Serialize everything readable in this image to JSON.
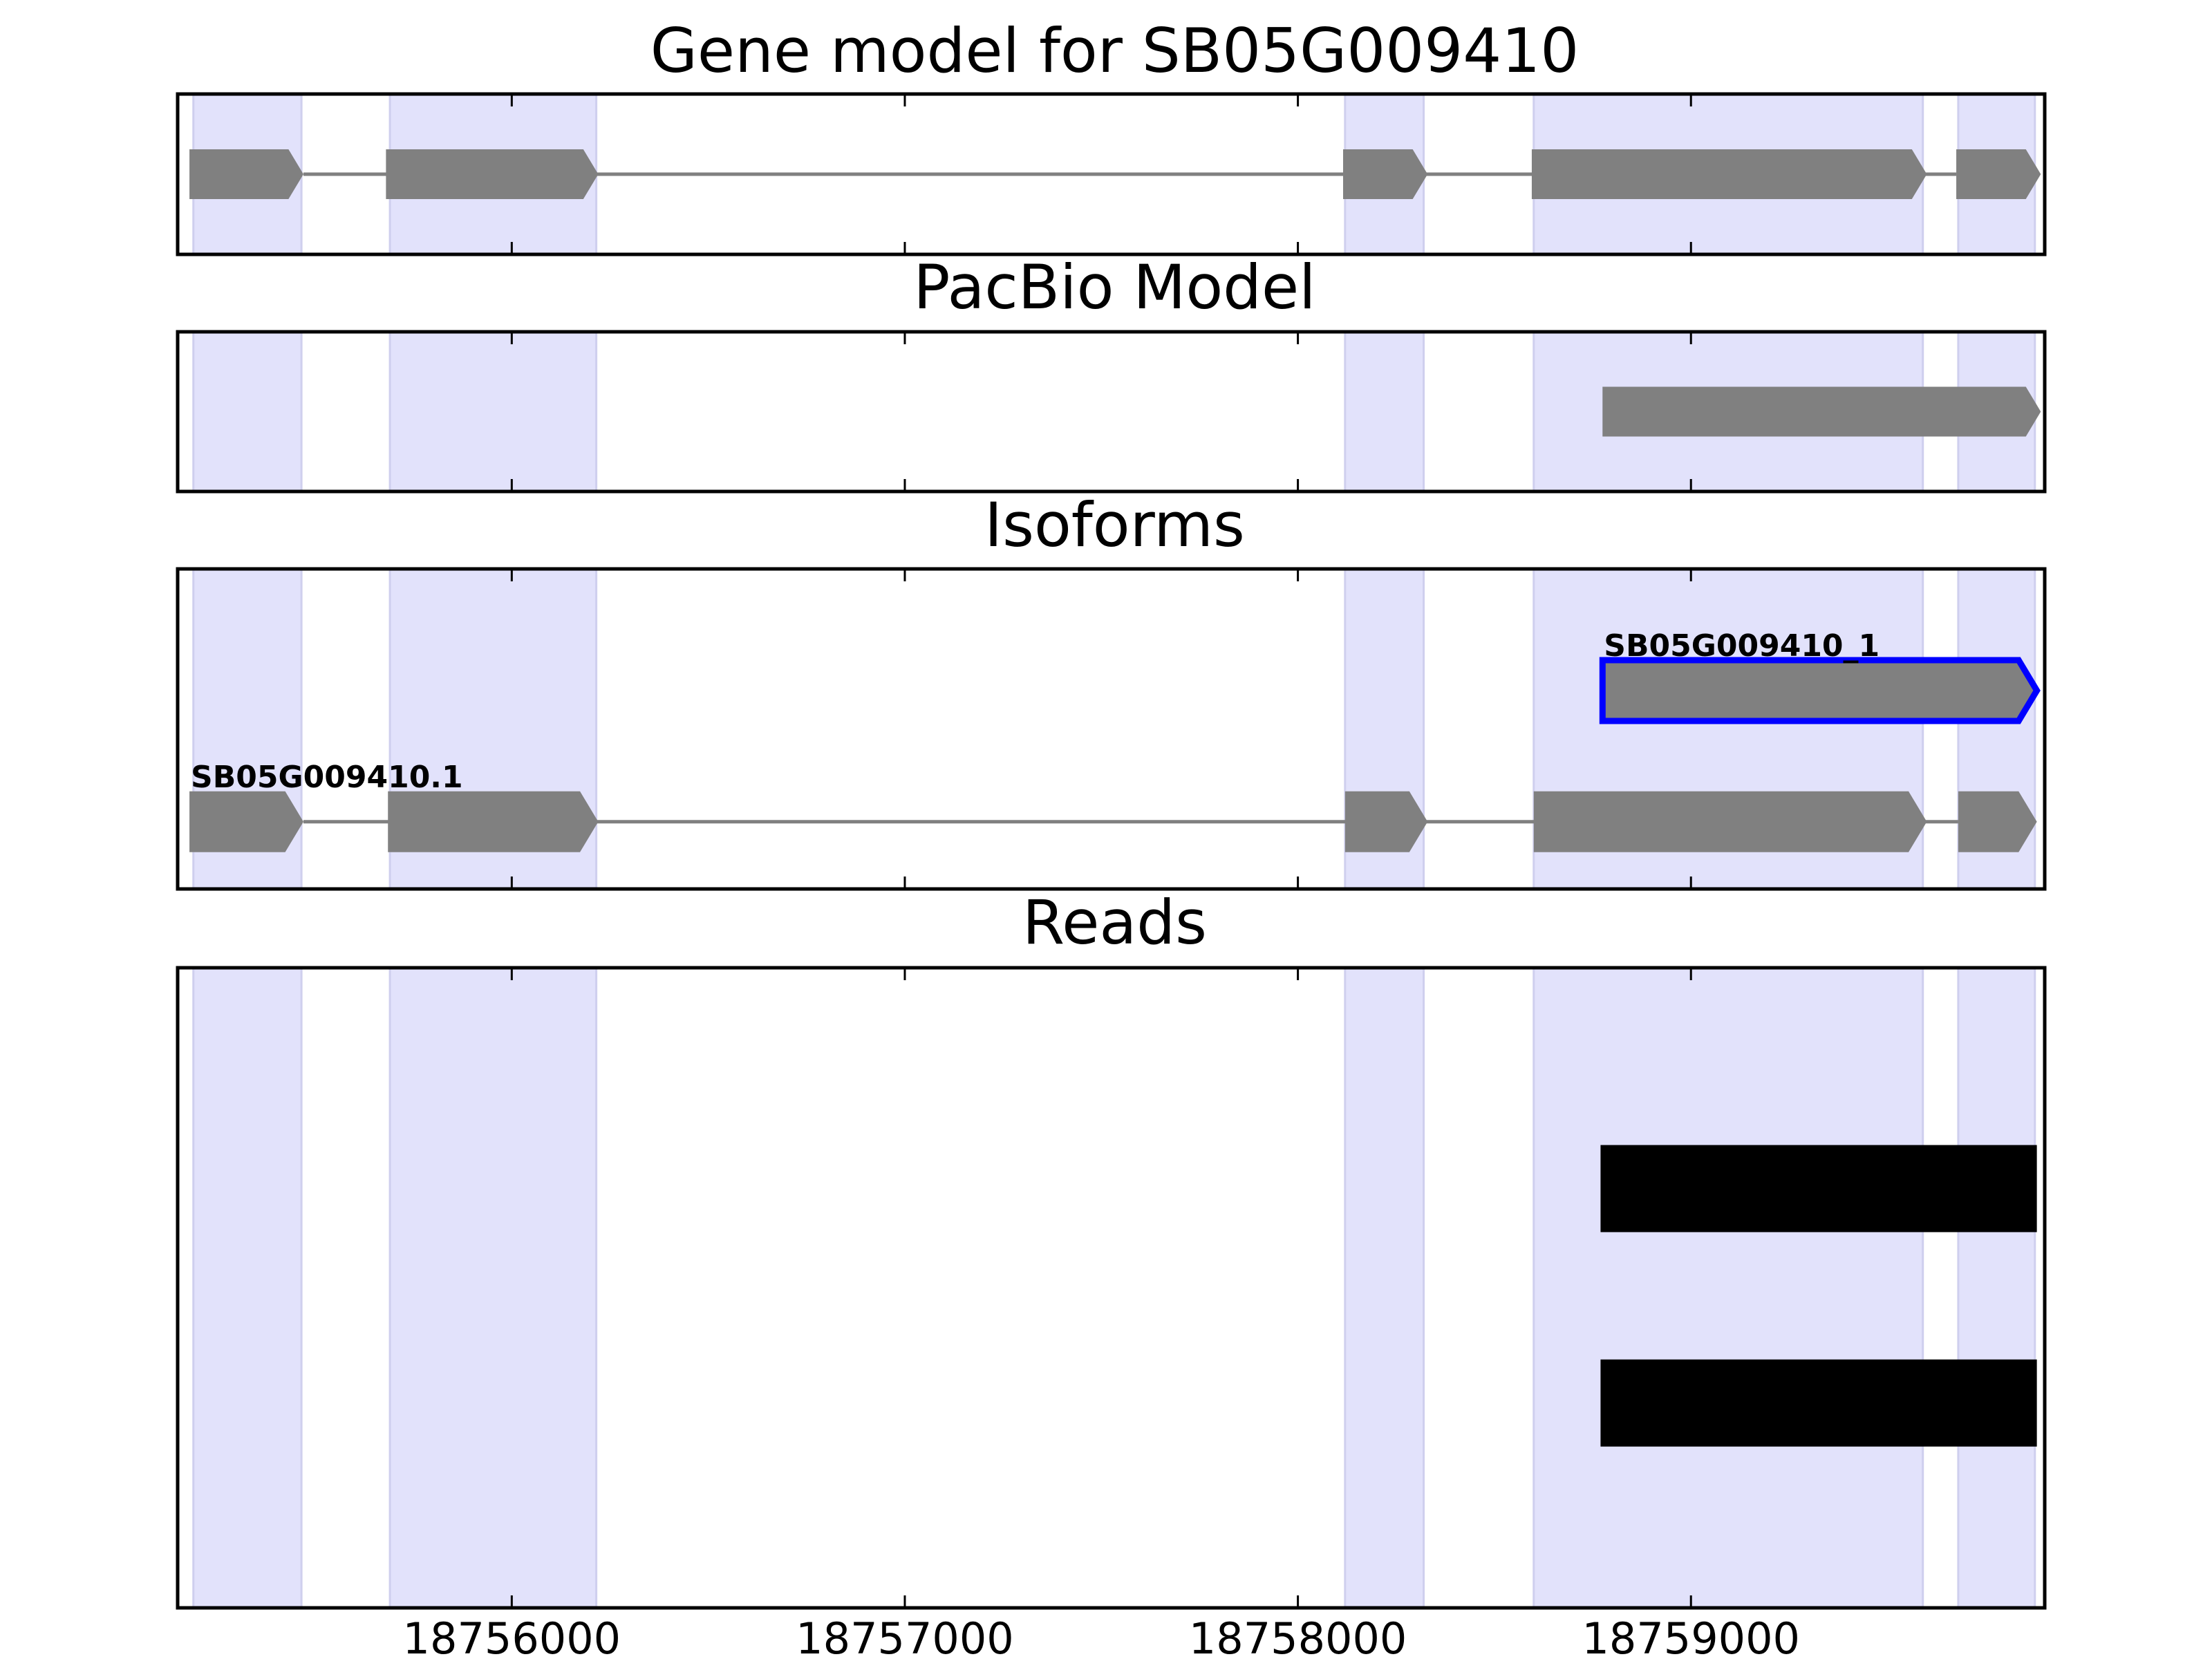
{
  "figure": {
    "title": "Gene model for SB05G009410"
  },
  "chart_data": {
    "type": "gene-track",
    "xlim": [
      18755150,
      18759900
    ],
    "xticks": [
      18756000,
      18757000,
      18758000,
      18759000
    ],
    "xtick_labels": [
      "18756000",
      "18757000",
      "18758000",
      "18759000"
    ],
    "exon_shading": {
      "color": "#e2e2fb",
      "regions": [
        [
          18755190,
          18755465
        ],
        [
          18755690,
          18756215
        ],
        [
          18758120,
          18758320
        ],
        [
          18758600,
          18759590
        ],
        [
          18759680,
          18759875
        ]
      ]
    },
    "panels": [
      {
        "title": "Gene model for SB05G009410",
        "ylim": [
          0,
          1
        ],
        "tracks": [
          {
            "label": "",
            "y": 0.5,
            "color": "#808080",
            "exons": [
              [
                18755180,
                18755470
              ],
              [
                18755680,
                18756220
              ],
              [
                18758115,
                18758330
              ],
              [
                18758595,
                18759600
              ],
              [
                18759675,
                18759890
              ]
            ]
          }
        ]
      },
      {
        "title": "PacBio Model",
        "ylim": [
          0,
          1
        ],
        "tracks": [
          {
            "label": "",
            "y": 0.5,
            "color": "#808080",
            "exons": [
              [
                18758775,
                18759890
              ]
            ]
          }
        ]
      },
      {
        "title": "Isoforms",
        "ylim": [
          0,
          1
        ],
        "tracks": [
          {
            "label": "SB05G009410_1",
            "y": 0.62,
            "color": "#808080",
            "edge": "#0000ff",
            "exons": [
              [
                18758775,
                18759880
              ]
            ]
          },
          {
            "label": "SB05G009410.1",
            "y": 0.21,
            "color": "#808080",
            "exons": [
              [
                18755180,
                18755470
              ],
              [
                18755685,
                18756220
              ],
              [
                18758120,
                18758330
              ],
              [
                18758600,
                18759600
              ],
              [
                18759680,
                18759880
              ]
            ]
          }
        ]
      },
      {
        "title": "Reads",
        "ylim": [
          0,
          1
        ],
        "reads": [
          {
            "y": 0.655,
            "start": 18758770,
            "end": 18759880
          },
          {
            "y": 0.32,
            "start": 18758770,
            "end": 18759880
          }
        ]
      }
    ]
  }
}
